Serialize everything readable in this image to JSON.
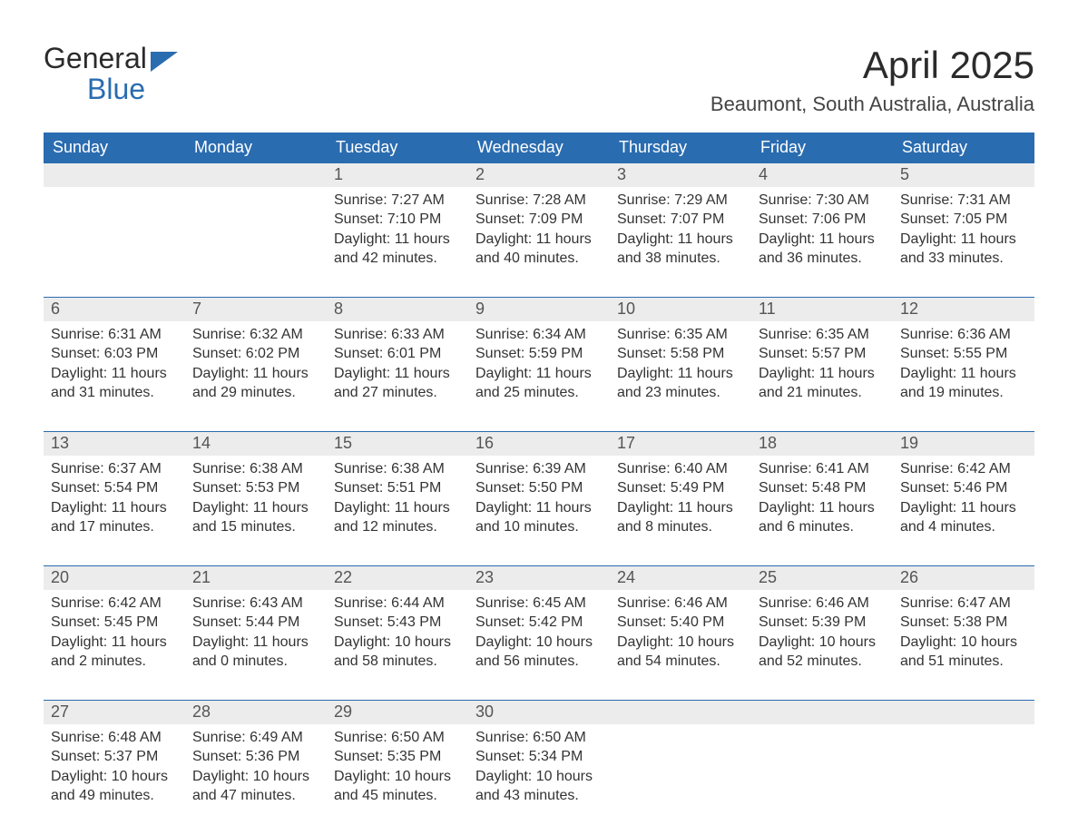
{
  "logo": {
    "word1": "General",
    "word2": "Blue"
  },
  "title": "April 2025",
  "location": "Beaumont, South Australia, Australia",
  "colors": {
    "brand": "#2a6cb0",
    "header_bg": "#2a6cb0",
    "header_text": "#ffffff",
    "daynum_bg": "#ececec",
    "daynum_text": "#555555",
    "body_text": "#333333",
    "page_bg": "#ffffff"
  },
  "font": {
    "title_size": 42,
    "location_size": 22,
    "header_size": 18,
    "cell_size": 16
  },
  "layout": {
    "cols": 7,
    "weeks": 5
  },
  "days_of_week": [
    "Sunday",
    "Monday",
    "Tuesday",
    "Wednesday",
    "Thursday",
    "Friday",
    "Saturday"
  ],
  "weeks": [
    [
      null,
      null,
      {
        "n": "1",
        "sr": "Sunrise: 7:27 AM",
        "ss": "Sunset: 7:10 PM",
        "dl": "Daylight: 11 hours and 42 minutes."
      },
      {
        "n": "2",
        "sr": "Sunrise: 7:28 AM",
        "ss": "Sunset: 7:09 PM",
        "dl": "Daylight: 11 hours and 40 minutes."
      },
      {
        "n": "3",
        "sr": "Sunrise: 7:29 AM",
        "ss": "Sunset: 7:07 PM",
        "dl": "Daylight: 11 hours and 38 minutes."
      },
      {
        "n": "4",
        "sr": "Sunrise: 7:30 AM",
        "ss": "Sunset: 7:06 PM",
        "dl": "Daylight: 11 hours and 36 minutes."
      },
      {
        "n": "5",
        "sr": "Sunrise: 7:31 AM",
        "ss": "Sunset: 7:05 PM",
        "dl": "Daylight: 11 hours and 33 minutes."
      }
    ],
    [
      {
        "n": "6",
        "sr": "Sunrise: 6:31 AM",
        "ss": "Sunset: 6:03 PM",
        "dl": "Daylight: 11 hours and 31 minutes."
      },
      {
        "n": "7",
        "sr": "Sunrise: 6:32 AM",
        "ss": "Sunset: 6:02 PM",
        "dl": "Daylight: 11 hours and 29 minutes."
      },
      {
        "n": "8",
        "sr": "Sunrise: 6:33 AM",
        "ss": "Sunset: 6:01 PM",
        "dl": "Daylight: 11 hours and 27 minutes."
      },
      {
        "n": "9",
        "sr": "Sunrise: 6:34 AM",
        "ss": "Sunset: 5:59 PM",
        "dl": "Daylight: 11 hours and 25 minutes."
      },
      {
        "n": "10",
        "sr": "Sunrise: 6:35 AM",
        "ss": "Sunset: 5:58 PM",
        "dl": "Daylight: 11 hours and 23 minutes."
      },
      {
        "n": "11",
        "sr": "Sunrise: 6:35 AM",
        "ss": "Sunset: 5:57 PM",
        "dl": "Daylight: 11 hours and 21 minutes."
      },
      {
        "n": "12",
        "sr": "Sunrise: 6:36 AM",
        "ss": "Sunset: 5:55 PM",
        "dl": "Daylight: 11 hours and 19 minutes."
      }
    ],
    [
      {
        "n": "13",
        "sr": "Sunrise: 6:37 AM",
        "ss": "Sunset: 5:54 PM",
        "dl": "Daylight: 11 hours and 17 minutes."
      },
      {
        "n": "14",
        "sr": "Sunrise: 6:38 AM",
        "ss": "Sunset: 5:53 PM",
        "dl": "Daylight: 11 hours and 15 minutes."
      },
      {
        "n": "15",
        "sr": "Sunrise: 6:38 AM",
        "ss": "Sunset: 5:51 PM",
        "dl": "Daylight: 11 hours and 12 minutes."
      },
      {
        "n": "16",
        "sr": "Sunrise: 6:39 AM",
        "ss": "Sunset: 5:50 PM",
        "dl": "Daylight: 11 hours and 10 minutes."
      },
      {
        "n": "17",
        "sr": "Sunrise: 6:40 AM",
        "ss": "Sunset: 5:49 PM",
        "dl": "Daylight: 11 hours and 8 minutes."
      },
      {
        "n": "18",
        "sr": "Sunrise: 6:41 AM",
        "ss": "Sunset: 5:48 PM",
        "dl": "Daylight: 11 hours and 6 minutes."
      },
      {
        "n": "19",
        "sr": "Sunrise: 6:42 AM",
        "ss": "Sunset: 5:46 PM",
        "dl": "Daylight: 11 hours and 4 minutes."
      }
    ],
    [
      {
        "n": "20",
        "sr": "Sunrise: 6:42 AM",
        "ss": "Sunset: 5:45 PM",
        "dl": "Daylight: 11 hours and 2 minutes."
      },
      {
        "n": "21",
        "sr": "Sunrise: 6:43 AM",
        "ss": "Sunset: 5:44 PM",
        "dl": "Daylight: 11 hours and 0 minutes."
      },
      {
        "n": "22",
        "sr": "Sunrise: 6:44 AM",
        "ss": "Sunset: 5:43 PM",
        "dl": "Daylight: 10 hours and 58 minutes."
      },
      {
        "n": "23",
        "sr": "Sunrise: 6:45 AM",
        "ss": "Sunset: 5:42 PM",
        "dl": "Daylight: 10 hours and 56 minutes."
      },
      {
        "n": "24",
        "sr": "Sunrise: 6:46 AM",
        "ss": "Sunset: 5:40 PM",
        "dl": "Daylight: 10 hours and 54 minutes."
      },
      {
        "n": "25",
        "sr": "Sunrise: 6:46 AM",
        "ss": "Sunset: 5:39 PM",
        "dl": "Daylight: 10 hours and 52 minutes."
      },
      {
        "n": "26",
        "sr": "Sunrise: 6:47 AM",
        "ss": "Sunset: 5:38 PM",
        "dl": "Daylight: 10 hours and 51 minutes."
      }
    ],
    [
      {
        "n": "27",
        "sr": "Sunrise: 6:48 AM",
        "ss": "Sunset: 5:37 PM",
        "dl": "Daylight: 10 hours and 49 minutes."
      },
      {
        "n": "28",
        "sr": "Sunrise: 6:49 AM",
        "ss": "Sunset: 5:36 PM",
        "dl": "Daylight: 10 hours and 47 minutes."
      },
      {
        "n": "29",
        "sr": "Sunrise: 6:50 AM",
        "ss": "Sunset: 5:35 PM",
        "dl": "Daylight: 10 hours and 45 minutes."
      },
      {
        "n": "30",
        "sr": "Sunrise: 6:50 AM",
        "ss": "Sunset: 5:34 PM",
        "dl": "Daylight: 10 hours and 43 minutes."
      },
      null,
      null,
      null
    ]
  ]
}
